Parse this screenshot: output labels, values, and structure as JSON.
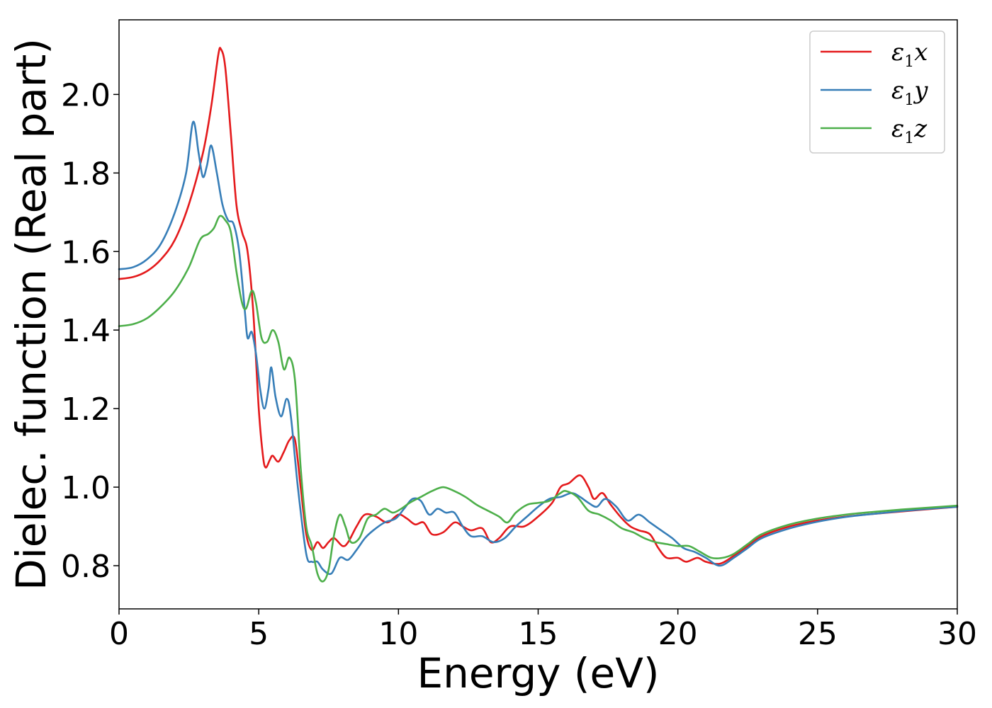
{
  "chart_data": {
    "type": "line",
    "title": "",
    "xlabel": "Energy (eV)",
    "ylabel": "Dielec. function (Real part)",
    "xlim": [
      0,
      30
    ],
    "ylim": [
      0.69,
      2.19
    ],
    "x_ticks": [
      {
        "value": 0,
        "label": "0"
      },
      {
        "value": 5,
        "label": "5"
      },
      {
        "value": 10,
        "label": "10"
      },
      {
        "value": 15,
        "label": "15"
      },
      {
        "value": 20,
        "label": "20"
      },
      {
        "value": 25,
        "label": "25"
      },
      {
        "value": 30,
        "label": "30"
      }
    ],
    "y_ticks": [
      {
        "value": 0.8,
        "label": "0.8"
      },
      {
        "value": 1.0,
        "label": "1.0"
      },
      {
        "value": 1.2,
        "label": "1.2"
      },
      {
        "value": 1.4,
        "label": "1.4"
      },
      {
        "value": 1.6,
        "label": "1.6"
      },
      {
        "value": 1.8,
        "label": "1.8"
      },
      {
        "value": 2.0,
        "label": "2.0"
      }
    ],
    "grid": false,
    "legend_position": "top-right",
    "series": [
      {
        "name": "ε1x",
        "legend": {
          "symbol": "ε",
          "sub": "1",
          "var": "x"
        },
        "color": "#e41a1c",
        "points": [
          [
            0,
            1.53
          ],
          [
            0.5,
            1.535
          ],
          [
            1,
            1.55
          ],
          [
            1.5,
            1.58
          ],
          [
            2,
            1.63
          ],
          [
            2.5,
            1.72
          ],
          [
            3,
            1.85
          ],
          [
            3.3,
            1.97
          ],
          [
            3.55,
            2.1
          ],
          [
            3.65,
            2.115
          ],
          [
            3.8,
            2.07
          ],
          [
            4,
            1.9
          ],
          [
            4.2,
            1.72
          ],
          [
            4.4,
            1.65
          ],
          [
            4.6,
            1.6
          ],
          [
            4.8,
            1.45
          ],
          [
            5,
            1.2
          ],
          [
            5.15,
            1.08
          ],
          [
            5.25,
            1.05
          ],
          [
            5.4,
            1.07
          ],
          [
            5.5,
            1.08
          ],
          [
            5.7,
            1.065
          ],
          [
            5.9,
            1.09
          ],
          [
            6.1,
            1.12
          ],
          [
            6.3,
            1.12
          ],
          [
            6.5,
            1.0
          ],
          [
            6.7,
            0.88
          ],
          [
            6.9,
            0.84
          ],
          [
            7.1,
            0.86
          ],
          [
            7.3,
            0.845
          ],
          [
            7.5,
            0.86
          ],
          [
            7.7,
            0.87
          ],
          [
            8,
            0.85
          ],
          [
            8.2,
            0.86
          ],
          [
            8.5,
            0.9
          ],
          [
            8.8,
            0.93
          ],
          [
            9.2,
            0.925
          ],
          [
            9.6,
            0.91
          ],
          [
            10,
            0.93
          ],
          [
            10.3,
            0.92
          ],
          [
            10.6,
            0.905
          ],
          [
            10.9,
            0.91
          ],
          [
            11.2,
            0.88
          ],
          [
            11.6,
            0.885
          ],
          [
            12,
            0.91
          ],
          [
            12.3,
            0.9
          ],
          [
            12.6,
            0.89
          ],
          [
            13,
            0.895
          ],
          [
            13.3,
            0.86
          ],
          [
            13.6,
            0.87
          ],
          [
            14,
            0.9
          ],
          [
            14.5,
            0.9
          ],
          [
            15,
            0.925
          ],
          [
            15.5,
            0.96
          ],
          [
            15.8,
            1.0
          ],
          [
            16.1,
            1.01
          ],
          [
            16.5,
            1.03
          ],
          [
            16.8,
            1.0
          ],
          [
            17,
            0.97
          ],
          [
            17.3,
            0.985
          ],
          [
            17.6,
            0.955
          ],
          [
            18,
            0.92
          ],
          [
            18.3,
            0.9
          ],
          [
            18.6,
            0.89
          ],
          [
            19,
            0.88
          ],
          [
            19.3,
            0.845
          ],
          [
            19.6,
            0.82
          ],
          [
            20,
            0.82
          ],
          [
            20.3,
            0.81
          ],
          [
            20.7,
            0.82
          ],
          [
            21,
            0.81
          ],
          [
            21.5,
            0.805
          ],
          [
            22,
            0.825
          ],
          [
            22.5,
            0.85
          ],
          [
            23,
            0.875
          ],
          [
            24,
            0.9
          ],
          [
            25,
            0.915
          ],
          [
            26,
            0.925
          ],
          [
            27,
            0.932
          ],
          [
            28,
            0.938
          ],
          [
            29,
            0.944
          ],
          [
            30,
            0.95
          ]
        ]
      },
      {
        "name": "ε1y",
        "legend": {
          "symbol": "ε",
          "sub": "1",
          "var": "y"
        },
        "color": "#377eb8",
        "points": [
          [
            0,
            1.555
          ],
          [
            0.5,
            1.56
          ],
          [
            1,
            1.58
          ],
          [
            1.5,
            1.62
          ],
          [
            2,
            1.7
          ],
          [
            2.4,
            1.8
          ],
          [
            2.65,
            1.93
          ],
          [
            2.85,
            1.85
          ],
          [
            3,
            1.79
          ],
          [
            3.15,
            1.82
          ],
          [
            3.3,
            1.87
          ],
          [
            3.5,
            1.8
          ],
          [
            3.7,
            1.72
          ],
          [
            3.9,
            1.68
          ],
          [
            4.1,
            1.67
          ],
          [
            4.3,
            1.6
          ],
          [
            4.5,
            1.45
          ],
          [
            4.6,
            1.38
          ],
          [
            4.75,
            1.395
          ],
          [
            4.9,
            1.34
          ],
          [
            5.05,
            1.25
          ],
          [
            5.2,
            1.2
          ],
          [
            5.35,
            1.25
          ],
          [
            5.45,
            1.305
          ],
          [
            5.6,
            1.23
          ],
          [
            5.8,
            1.18
          ],
          [
            6.0,
            1.225
          ],
          [
            6.15,
            1.18
          ],
          [
            6.4,
            1.0
          ],
          [
            6.7,
            0.83
          ],
          [
            6.9,
            0.81
          ],
          [
            7.1,
            0.81
          ],
          [
            7.3,
            0.79
          ],
          [
            7.6,
            0.78
          ],
          [
            7.9,
            0.82
          ],
          [
            8.2,
            0.815
          ],
          [
            8.5,
            0.84
          ],
          [
            8.8,
            0.87
          ],
          [
            9.1,
            0.89
          ],
          [
            9.5,
            0.91
          ],
          [
            9.9,
            0.92
          ],
          [
            10.2,
            0.945
          ],
          [
            10.5,
            0.97
          ],
          [
            10.8,
            0.965
          ],
          [
            11.1,
            0.93
          ],
          [
            11.4,
            0.945
          ],
          [
            11.7,
            0.935
          ],
          [
            12,
            0.935
          ],
          [
            12.3,
            0.9
          ],
          [
            12.6,
            0.875
          ],
          [
            13,
            0.875
          ],
          [
            13.4,
            0.86
          ],
          [
            13.8,
            0.87
          ],
          [
            14.2,
            0.9
          ],
          [
            14.6,
            0.925
          ],
          [
            15,
            0.95
          ],
          [
            15.4,
            0.97
          ],
          [
            15.8,
            0.975
          ],
          [
            16.2,
            0.985
          ],
          [
            16.5,
            0.975
          ],
          [
            16.8,
            0.96
          ],
          [
            17.1,
            0.95
          ],
          [
            17.4,
            0.97
          ],
          [
            17.8,
            0.95
          ],
          [
            18.2,
            0.915
          ],
          [
            18.6,
            0.93
          ],
          [
            19,
            0.91
          ],
          [
            19.4,
            0.89
          ],
          [
            19.8,
            0.87
          ],
          [
            20.2,
            0.845
          ],
          [
            20.6,
            0.835
          ],
          [
            21,
            0.82
          ],
          [
            21.5,
            0.8
          ],
          [
            22,
            0.82
          ],
          [
            22.5,
            0.845
          ],
          [
            23,
            0.87
          ],
          [
            24,
            0.895
          ],
          [
            25,
            0.912
          ],
          [
            26,
            0.924
          ],
          [
            27,
            0.932
          ],
          [
            28,
            0.939
          ],
          [
            29,
            0.945
          ],
          [
            30,
            0.95
          ]
        ]
      },
      {
        "name": "ε1z",
        "legend": {
          "symbol": "ε",
          "sub": "1",
          "var": "z"
        },
        "color": "#4daf4a",
        "points": [
          [
            0,
            1.41
          ],
          [
            0.5,
            1.415
          ],
          [
            1,
            1.43
          ],
          [
            1.5,
            1.46
          ],
          [
            2,
            1.5
          ],
          [
            2.5,
            1.56
          ],
          [
            2.9,
            1.63
          ],
          [
            3.2,
            1.645
          ],
          [
            3.4,
            1.66
          ],
          [
            3.6,
            1.69
          ],
          [
            3.8,
            1.68
          ],
          [
            4.0,
            1.65
          ],
          [
            4.2,
            1.55
          ],
          [
            4.4,
            1.47
          ],
          [
            4.55,
            1.455
          ],
          [
            4.75,
            1.5
          ],
          [
            4.9,
            1.47
          ],
          [
            5.1,
            1.38
          ],
          [
            5.3,
            1.37
          ],
          [
            5.5,
            1.4
          ],
          [
            5.7,
            1.37
          ],
          [
            5.9,
            1.3
          ],
          [
            6.1,
            1.33
          ],
          [
            6.3,
            1.27
          ],
          [
            6.5,
            1.05
          ],
          [
            6.7,
            0.9
          ],
          [
            6.9,
            0.85
          ],
          [
            7.1,
            0.78
          ],
          [
            7.3,
            0.76
          ],
          [
            7.5,
            0.79
          ],
          [
            7.7,
            0.88
          ],
          [
            7.9,
            0.93
          ],
          [
            8.1,
            0.9
          ],
          [
            8.3,
            0.86
          ],
          [
            8.6,
            0.87
          ],
          [
            8.9,
            0.92
          ],
          [
            9.2,
            0.93
          ],
          [
            9.5,
            0.945
          ],
          [
            9.8,
            0.935
          ],
          [
            10.1,
            0.945
          ],
          [
            10.4,
            0.96
          ],
          [
            10.8,
            0.975
          ],
          [
            11.2,
            0.99
          ],
          [
            11.6,
            1.0
          ],
          [
            12,
            0.99
          ],
          [
            12.4,
            0.975
          ],
          [
            12.8,
            0.955
          ],
          [
            13.2,
            0.94
          ],
          [
            13.6,
            0.925
          ],
          [
            13.9,
            0.91
          ],
          [
            14.2,
            0.935
          ],
          [
            14.6,
            0.955
          ],
          [
            15,
            0.96
          ],
          [
            15.4,
            0.965
          ],
          [
            15.8,
            0.985
          ],
          [
            16.0,
            0.99
          ],
          [
            16.4,
            0.975
          ],
          [
            16.8,
            0.94
          ],
          [
            17.2,
            0.93
          ],
          [
            17.6,
            0.915
          ],
          [
            18,
            0.895
          ],
          [
            18.4,
            0.885
          ],
          [
            18.8,
            0.87
          ],
          [
            19.2,
            0.86
          ],
          [
            19.6,
            0.855
          ],
          [
            20,
            0.85
          ],
          [
            20.4,
            0.85
          ],
          [
            20.8,
            0.835
          ],
          [
            21.2,
            0.82
          ],
          [
            21.6,
            0.82
          ],
          [
            22,
            0.83
          ],
          [
            22.5,
            0.855
          ],
          [
            23,
            0.88
          ],
          [
            24,
            0.905
          ],
          [
            25,
            0.92
          ],
          [
            26,
            0.93
          ],
          [
            27,
            0.937
          ],
          [
            28,
            0.943
          ],
          [
            29,
            0.948
          ],
          [
            30,
            0.953
          ]
        ]
      }
    ]
  }
}
